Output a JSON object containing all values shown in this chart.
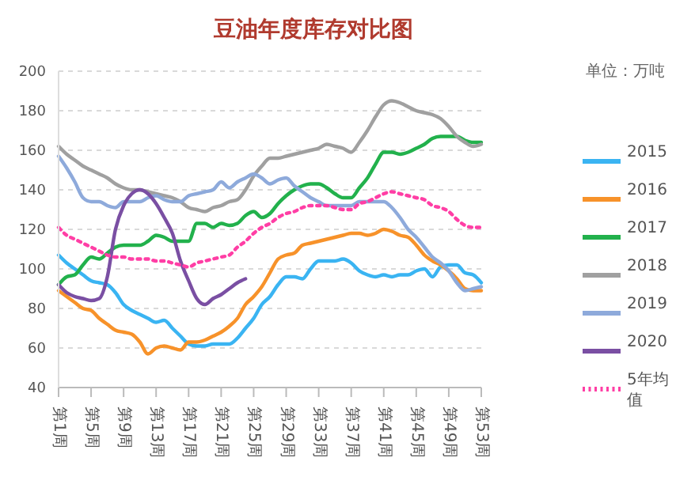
{
  "chart_data": {
    "type": "line",
    "title": "豆油年度库存对比图",
    "annotations": [
      "单位：万吨"
    ],
    "categories": [
      "第1周",
      null,
      null,
      null,
      "第5周",
      null,
      null,
      null,
      "第9周",
      null,
      null,
      null,
      "第13周",
      null,
      null,
      null,
      "第17周",
      null,
      null,
      null,
      "第21周",
      null,
      null,
      null,
      "第25周",
      null,
      null,
      null,
      "第29周",
      null,
      null,
      null,
      "第33周",
      null,
      null,
      null,
      "第37周",
      null,
      null,
      null,
      "第41周",
      null,
      null,
      null,
      "第45周",
      null,
      null,
      null,
      "第49周",
      null,
      null,
      null,
      "第53周"
    ],
    "ylim": [
      40,
      200
    ],
    "yticks": [
      40,
      60,
      80,
      100,
      120,
      140,
      160,
      180,
      200
    ],
    "grid": "y",
    "legend": "right",
    "marker": "none",
    "series": [
      {
        "name": "2015",
        "color": "#3ab4f2",
        "values": [
          107,
          103,
          100,
          97,
          94,
          93,
          92,
          88,
          82,
          79,
          77,
          75,
          73,
          74,
          70,
          66,
          62,
          61,
          61,
          62,
          62,
          62,
          65,
          70,
          75,
          82,
          86,
          92,
          96,
          96,
          95,
          100,
          104,
          104,
          104,
          105,
          103,
          99,
          97,
          96,
          97,
          96,
          97,
          97,
          99,
          100,
          96,
          101,
          102,
          102,
          98,
          97,
          93
        ]
      },
      {
        "name": "2016",
        "color": "#f7922a",
        "values": [
          89,
          86,
          83,
          80,
          79,
          75,
          72,
          69,
          68,
          67,
          63,
          57,
          60,
          61,
          60,
          59,
          63,
          63,
          64,
          66,
          68,
          71,
          75,
          82,
          86,
          91,
          98,
          105,
          107,
          108,
          112,
          113,
          114,
          115,
          116,
          117,
          118,
          118,
          117,
          118,
          120,
          119,
          117,
          116,
          112,
          107,
          104,
          102,
          99,
          95,
          90,
          89,
          89
        ]
      },
      {
        "name": "2017",
        "color": "#22b14c",
        "values": [
          92,
          96,
          97,
          102,
          106,
          105,
          108,
          111,
          112,
          112,
          112,
          114,
          117,
          116,
          114,
          114,
          114,
          123,
          123,
          121,
          123,
          122,
          123,
          127,
          129,
          126,
          128,
          133,
          137,
          140,
          142,
          143,
          143,
          141,
          138,
          136,
          136,
          141,
          146,
          153,
          159,
          159,
          158,
          159,
          161,
          163,
          166,
          167,
          167,
          167,
          165,
          164,
          164
        ]
      },
      {
        "name": "2018",
        "color": "#a0a0a0",
        "values": [
          162,
          158,
          155,
          152,
          150,
          148,
          146,
          143,
          141,
          140,
          140,
          139,
          138,
          137,
          136,
          134,
          131,
          130,
          129,
          131,
          132,
          134,
          135,
          140,
          147,
          152,
          156,
          156,
          157,
          158,
          159,
          160,
          161,
          163,
          162,
          161,
          159,
          164,
          170,
          177,
          183,
          185,
          184,
          182,
          180,
          179,
          178,
          176,
          172,
          167,
          164,
          162,
          163
        ]
      },
      {
        "name": "2019",
        "color": "#8eaadb",
        "values": [
          157,
          151,
          144,
          136,
          134,
          134,
          132,
          131,
          134,
          134,
          134,
          136,
          137,
          135,
          134,
          134,
          137,
          138,
          139,
          140,
          144,
          141,
          144,
          146,
          148,
          146,
          143,
          145,
          146,
          142,
          139,
          136,
          134,
          132,
          132,
          132,
          132,
          134,
          134,
          134,
          134,
          131,
          126,
          120,
          116,
          111,
          106,
          103,
          99,
          93,
          89,
          90,
          91
        ]
      },
      {
        "name": "2020",
        "color": "#7a4fa3",
        "values": [
          92,
          88,
          86,
          85,
          84,
          85,
          96,
          120,
          132,
          138,
          140,
          138,
          133,
          126,
          118,
          104,
          94,
          85,
          82,
          85,
          87,
          90,
          93,
          95,
          null,
          null,
          null,
          null,
          null,
          null,
          null,
          null,
          null,
          null,
          null,
          null,
          null,
          null,
          null,
          null,
          null,
          null,
          null,
          null,
          null,
          null,
          null,
          null,
          null,
          null,
          null,
          null,
          null
        ]
      },
      {
        "name": "5年均值",
        "color": "#ff3ea5",
        "line_style": "dotted",
        "values": [
          121,
          117,
          115,
          113,
          111,
          109,
          107,
          106,
          106,
          105,
          105,
          105,
          104,
          104,
          103,
          102,
          101,
          103,
          104,
          105,
          106,
          107,
          111,
          114,
          118,
          121,
          123,
          126,
          128,
          129,
          131,
          132,
          132,
          132,
          131,
          130,
          130,
          133,
          134,
          136,
          138,
          139,
          138,
          137,
          136,
          135,
          132,
          131,
          129,
          125,
          122,
          121,
          121
        ]
      }
    ]
  }
}
